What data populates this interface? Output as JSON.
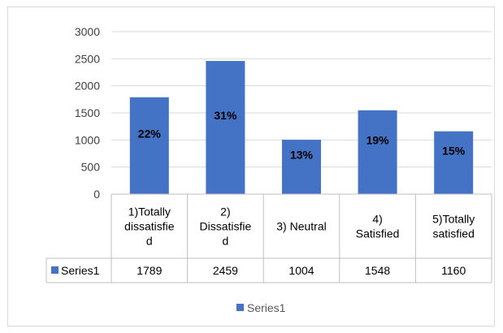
{
  "chart_data": {
    "type": "bar",
    "categories": [
      [
        "1)Totally",
        "dissatisfie",
        "d"
      ],
      [
        "2)",
        "Dissatisfie",
        "d"
      ],
      [
        "3) Neutral"
      ],
      [
        "4)",
        "Satisfied"
      ],
      [
        "5)Totally",
        "satisfied"
      ]
    ],
    "series": [
      {
        "name": "Series1",
        "values": [
          1789,
          2459,
          1004,
          1548,
          1160
        ],
        "data_labels": [
          "22%",
          "31%",
          "13%",
          "19%",
          "15%"
        ],
        "color": "#4472c4"
      }
    ],
    "ylim": [
      0,
      3000
    ],
    "yticks": [
      "0",
      "500",
      "1000",
      "1500",
      "2000",
      "2500",
      "3000"
    ],
    "grid": true,
    "data_table": true,
    "legend_position": "bottom"
  }
}
